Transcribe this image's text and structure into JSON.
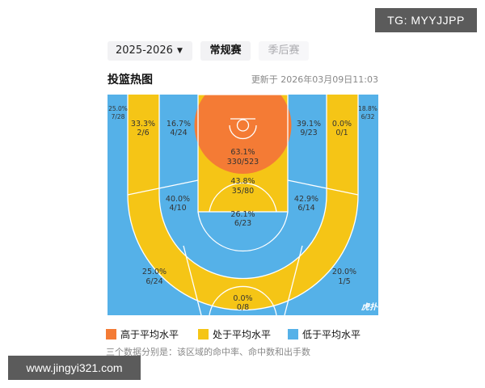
{
  "watermark_top": "TG: MYYJJPP",
  "watermark_bottom": "www.jingyi321.com",
  "season_select": {
    "value": "2025-2026"
  },
  "tabs": [
    {
      "label": "常规赛",
      "active": true
    },
    {
      "label": "季后赛",
      "active": false
    }
  ],
  "section_title": "投篮热图",
  "updated": "更新于 2026年03月09日11:03",
  "zones": {
    "corner_left": {
      "pct": "25.0%",
      "made_att": "7/28",
      "level": "low"
    },
    "left_base_mid": {
      "pct": "33.3%",
      "made_att": "2/6",
      "level": "mid"
    },
    "left_lane_mid": {
      "pct": "16.7%",
      "made_att": "4/24",
      "level": "low"
    },
    "restricted_area": {
      "pct": "63.1%",
      "made_att": "330/523",
      "level": "high"
    },
    "right_lane_mid": {
      "pct": "39.1%",
      "made_att": "9/23",
      "level": "mid"
    },
    "right_base_mid": {
      "pct": "0.0%",
      "made_att": "0/1",
      "level": "low"
    },
    "corner_right": {
      "pct": "18.8%",
      "made_att": "6/32",
      "level": "low"
    },
    "paint": {
      "pct": "43.8%",
      "made_att": "35/80",
      "level": "mid"
    },
    "left_elbow": {
      "pct": "40.0%",
      "made_att": "4/10",
      "level": "mid"
    },
    "right_elbow": {
      "pct": "42.9%",
      "made_att": "6/14",
      "level": "mid"
    },
    "top_key": {
      "pct": "26.1%",
      "made_att": "6/23",
      "level": "low"
    },
    "left_wing_three": {
      "pct": "25.0%",
      "made_att": "6/24",
      "level": "low"
    },
    "right_wing_three": {
      "pct": "20.0%",
      "made_att": "1/5",
      "level": "low"
    },
    "top_three": {
      "pct": "0.0%",
      "made_att": "0/8",
      "level": "low"
    }
  },
  "court_logo": "虎扑",
  "colors": {
    "high": "#f47b35",
    "mid": "#f5c516",
    "low": "#55b1e8"
  },
  "legend": [
    {
      "label": "高于平均水平",
      "color": "#f47b35"
    },
    {
      "label": "处于平均水平",
      "color": "#f5c516"
    },
    {
      "label": "低于平均水平",
      "color": "#55b1e8"
    }
  ],
  "note": "三个数据分别是：该区域的命中率、命中数和出手数"
}
